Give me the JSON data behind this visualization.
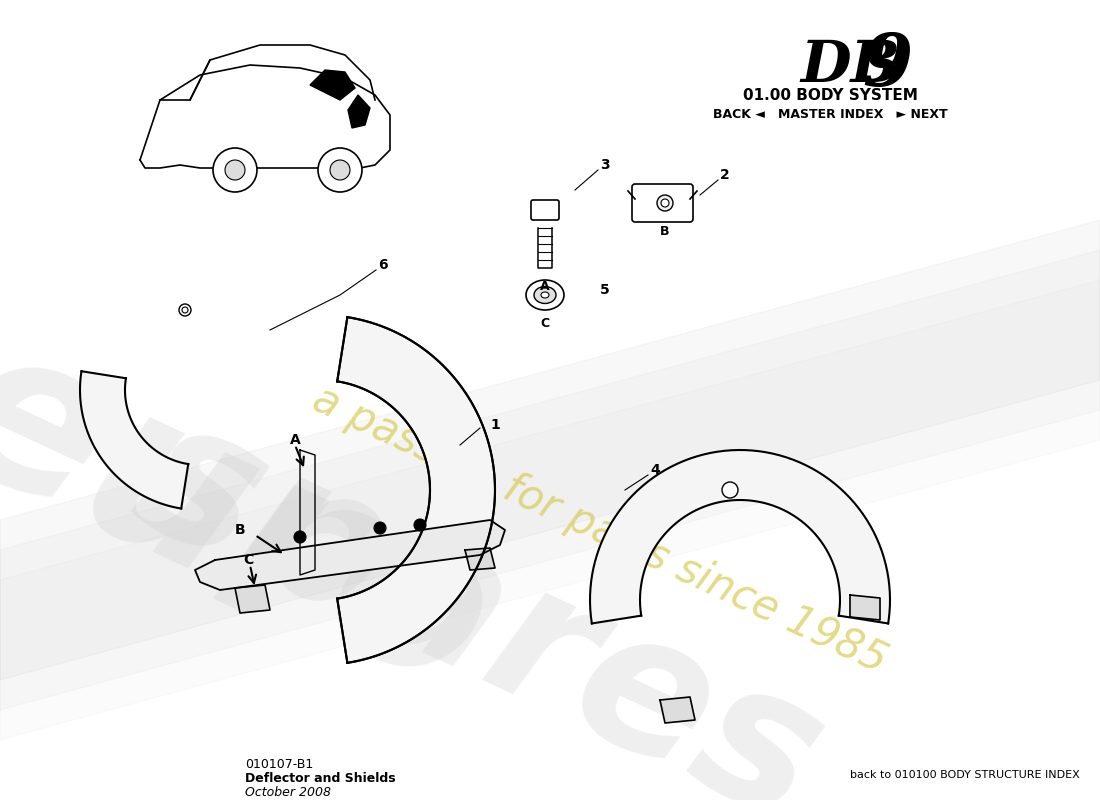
{
  "title_system": "01.00 BODY SYSTEM",
  "title_nav": "BACK ◄   MASTER INDEX   ► NEXT",
  "part_code": "010107-B1",
  "part_name": "Deflector and Shields",
  "part_date": "October 2008",
  "footer_right": "back to 010100 BODY STRUCTURE INDEX",
  "bg_color": "#ffffff"
}
